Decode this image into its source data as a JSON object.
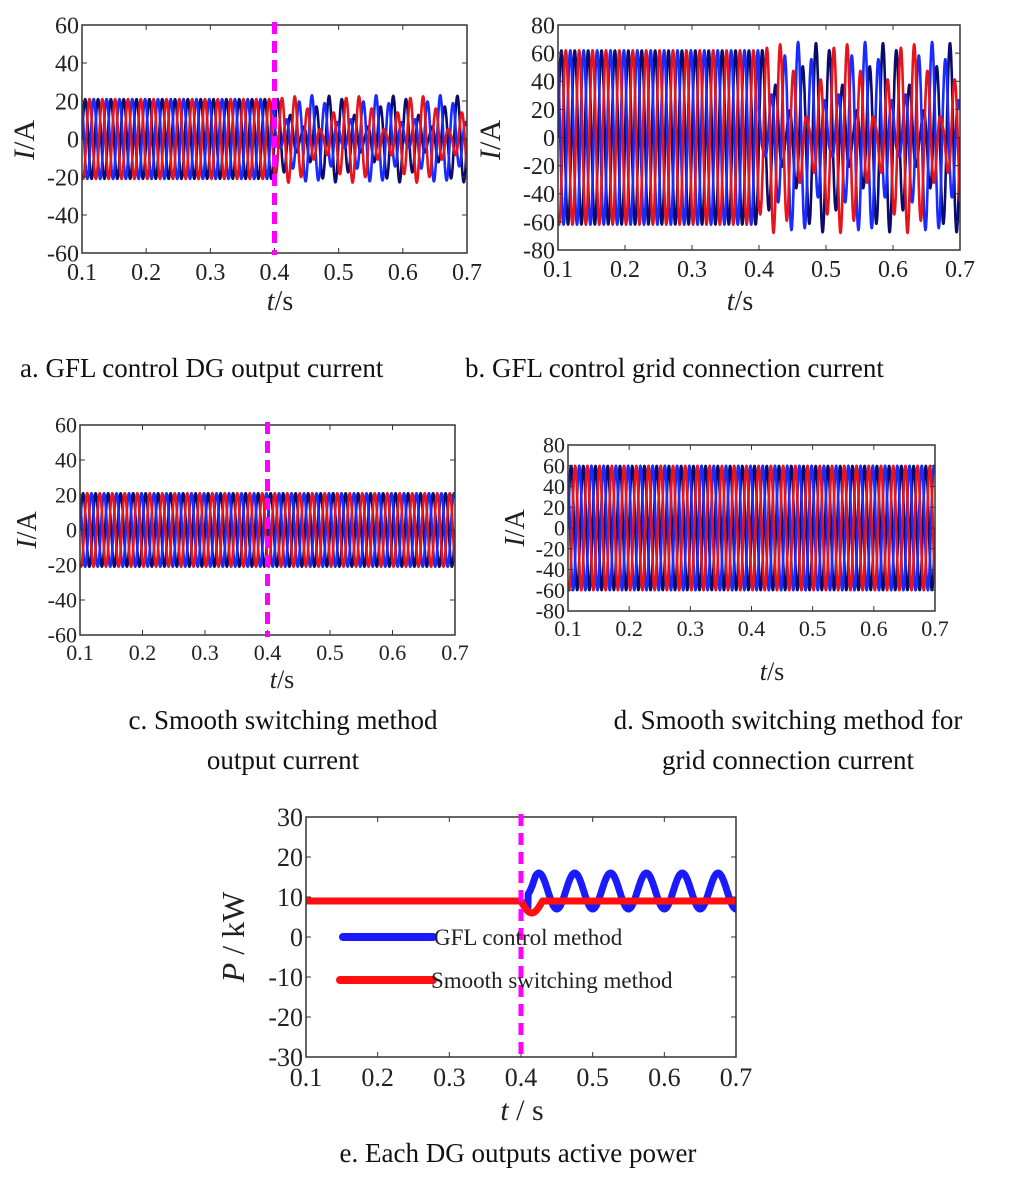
{
  "chart_data": [
    {
      "id": "a",
      "type": "line",
      "caption": [
        "a. GFL control DG output current"
      ],
      "xlabel": {
        "var": "t",
        "unit": "/s"
      },
      "ylabel": {
        "var": "I",
        "unit": "/A"
      },
      "xlim": [
        0.1,
        0.7
      ],
      "ylim": [
        -60,
        60
      ],
      "xticks": [
        0.1,
        0.2,
        0.3,
        0.4,
        0.5,
        0.6,
        0.7
      ],
      "yticks": [
        60,
        40,
        20,
        0,
        -20,
        -40,
        -60
      ],
      "switch_time": 0.4,
      "switch_line_color": "#ff00ff",
      "frequency_hz": 50,
      "amplitude_before": 21,
      "amplitude_after": 23,
      "beat_hz": 10,
      "series": [
        {
          "color": "#0b0b6b",
          "phase_deg": 0
        },
        {
          "color": "#1a2bff",
          "phase_deg": 120
        },
        {
          "color": "#e8141c",
          "phase_deg": 240
        }
      ]
    },
    {
      "id": "b",
      "type": "line",
      "caption": [
        "b. GFL control grid connection current"
      ],
      "xlabel": {
        "var": "t",
        "unit": "/s"
      },
      "ylabel": {
        "var": "I",
        "unit": "/A"
      },
      "xlim": [
        0.1,
        0.7
      ],
      "ylim": [
        -80,
        80
      ],
      "xticks": [
        0.1,
        0.2,
        0.3,
        0.4,
        0.5,
        0.6,
        0.7
      ],
      "yticks": [
        80,
        60,
        40,
        20,
        0,
        -20,
        -40,
        -60,
        -80
      ],
      "switch_time": null,
      "frequency_hz": 50,
      "amplitude_before": 62,
      "amplitude_after": 68,
      "beat_hz": 10,
      "series": [
        {
          "color": "#0b0b6b",
          "phase_deg": 0
        },
        {
          "color": "#1a2bff",
          "phase_deg": 120
        },
        {
          "color": "#e8141c",
          "phase_deg": 240
        }
      ]
    },
    {
      "id": "c",
      "type": "line",
      "caption": [
        "c. Smooth switching method",
        "output current"
      ],
      "xlabel": {
        "var": "t",
        "unit": "/s"
      },
      "ylabel": {
        "var": "I",
        "unit": "/A"
      },
      "xlim": [
        0.1,
        0.7
      ],
      "ylim": [
        -60,
        60
      ],
      "xticks": [
        0.1,
        0.2,
        0.3,
        0.4,
        0.5,
        0.6,
        0.7
      ],
      "yticks": [
        60,
        40,
        20,
        0,
        -20,
        -40,
        -60
      ],
      "switch_time": 0.4,
      "switch_line_color": "#ff00ff",
      "frequency_hz": 50,
      "amplitude_before": 21,
      "amplitude_after": 21,
      "beat_hz": 0,
      "series": [
        {
          "color": "#0b0b6b",
          "phase_deg": 0
        },
        {
          "color": "#1a2bff",
          "phase_deg": 120
        },
        {
          "color": "#e8141c",
          "phase_deg": 240
        }
      ]
    },
    {
      "id": "d",
      "type": "line",
      "caption": [
        "d. Smooth switching method for",
        "grid connection current"
      ],
      "xlabel": {
        "var": "t",
        "unit": "/s"
      },
      "ylabel": {
        "var": "I",
        "unit": "/A"
      },
      "xlim": [
        0.1,
        0.7
      ],
      "ylim": [
        -80,
        80
      ],
      "xticks": [
        0.1,
        0.2,
        0.3,
        0.4,
        0.5,
        0.6,
        0.7
      ],
      "yticks": [
        80,
        60,
        40,
        20,
        0,
        -20,
        -40,
        -60,
        -80
      ],
      "switch_time": null,
      "frequency_hz": 50,
      "amplitude_before": 60,
      "amplitude_after": 60,
      "beat_hz": 0,
      "series": [
        {
          "color": "#0b0b6b",
          "phase_deg": 0
        },
        {
          "color": "#1a2bff",
          "phase_deg": 120
        },
        {
          "color": "#e8141c",
          "phase_deg": 240
        }
      ]
    },
    {
      "id": "e",
      "type": "line",
      "caption": [
        "e. Each DG outputs active power"
      ],
      "xlabel": {
        "var": "t",
        "unit": " / s"
      },
      "ylabel": {
        "var": "P",
        "unit": " / kW"
      },
      "xlim": [
        0.1,
        0.7
      ],
      "ylim": [
        -30,
        30
      ],
      "xticks": [
        0.1,
        0.2,
        0.3,
        0.4,
        0.5,
        0.6,
        0.7
      ],
      "yticks": [
        30,
        20,
        10,
        0,
        -10,
        -20,
        -30
      ],
      "switch_time": 0.4,
      "switch_line_color": "#ff00ff",
      "legend": {
        "placement": "center-left"
      },
      "series": [
        {
          "name": "GFL control method",
          "color": "#1a1aff",
          "before": 9,
          "after_mean": 11.5,
          "after_osc_amplitude": 4.5,
          "after_osc_period_s": 0.05
        },
        {
          "name": "Smooth switching method",
          "color": "#ff1010",
          "before": 9,
          "dip_min": 6,
          "after": 9
        }
      ]
    }
  ]
}
